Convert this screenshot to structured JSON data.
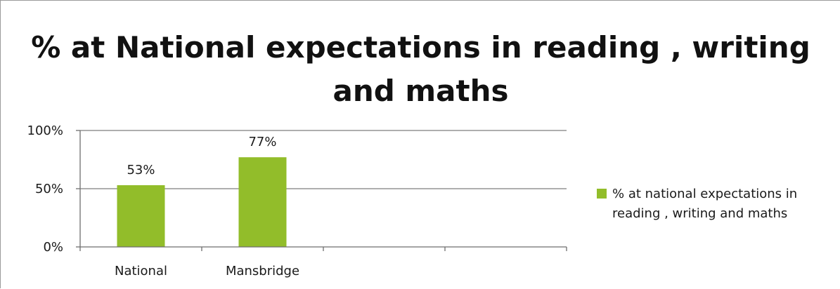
{
  "chart_data": {
    "type": "bar",
    "title": "% at National expectations in reading , writing and maths",
    "categories": [
      "National",
      "Mansbridge"
    ],
    "series": [
      {
        "name": "% at national expectations in reading , writing and maths",
        "values": [
          53,
          77
        ],
        "data_labels": [
          "53%",
          "77%"
        ],
        "color": "#92bd2a"
      }
    ],
    "category_slots": 4,
    "ylim": [
      0,
      100
    ],
    "yticks": [
      0,
      50,
      100
    ],
    "ytick_labels": [
      "0%",
      "50%",
      "100%"
    ],
    "grid": true,
    "legend_position": "right"
  }
}
